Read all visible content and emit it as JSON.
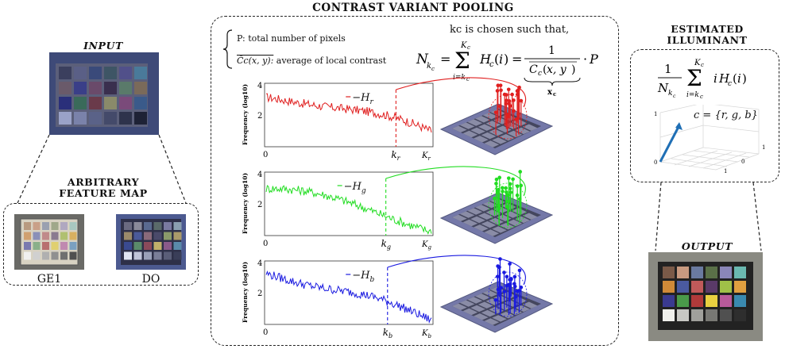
{
  "input": {
    "title": "INPUT"
  },
  "feature_map": {
    "title_line1": "ARBITRARY",
    "title_line2": "FEATURE MAP",
    "left_caption": "GE1",
    "right_caption": "DO"
  },
  "pooling": {
    "title": "CONTRAST VARIANT POOLING",
    "def_p": "P: total number of pixels",
    "def_c": "average of local contrast",
    "def_c_symbol": "C̄c(x, y):",
    "kc_text": "kc is chosen such that,",
    "equation": "N_kc = Σ_{i=kc}^{Kc} Hc(i) = 1 / C̄c(x,y) · P",
    "underbrace_label": "xc"
  },
  "histograms": [
    {
      "color": "#e02020",
      "legend": "−H",
      "sub": "r",
      "k_label": "k",
      "k_sub": "r",
      "K_label": "K",
      "K_sub": "r",
      "ylabel": "Frequency (log10)",
      "y_top": "4",
      "y_mid": "2",
      "x_zero": "0"
    },
    {
      "color": "#22dd22",
      "legend": "−H",
      "sub": "g",
      "k_label": "k",
      "k_sub": "g",
      "K_label": "K",
      "K_sub": "g",
      "ylabel": "Frequency (log10)",
      "y_top": "4",
      "y_mid": "2",
      "x_zero": "0"
    },
    {
      "color": "#1a1ae0",
      "legend": "−H",
      "sub": "b",
      "k_label": "k",
      "k_sub": "b",
      "K_label": "K",
      "K_sub": "b",
      "ylabel": "Frequency (log10)",
      "y_top": "4",
      "y_mid": "2",
      "x_zero": "0"
    }
  ],
  "illuminant": {
    "title_line1": "ESTIMATED",
    "title_line2": "ILLUMINANT",
    "formula": "1/N_kc Σ_{i=kc}^{Kc} i Hc(i)",
    "cset": "c = {r, g, b}",
    "axis_1": "1",
    "axis_0": "0",
    "axis_1b": "1",
    "axis_1c": "1",
    "axis_0b": "0"
  },
  "output": {
    "title": "OUTPUT"
  },
  "colors": {
    "frame": "#222222",
    "red": "#e02020",
    "green": "#22dd22",
    "blue": "#1a1ae0",
    "vector": "#1f6fb5"
  }
}
